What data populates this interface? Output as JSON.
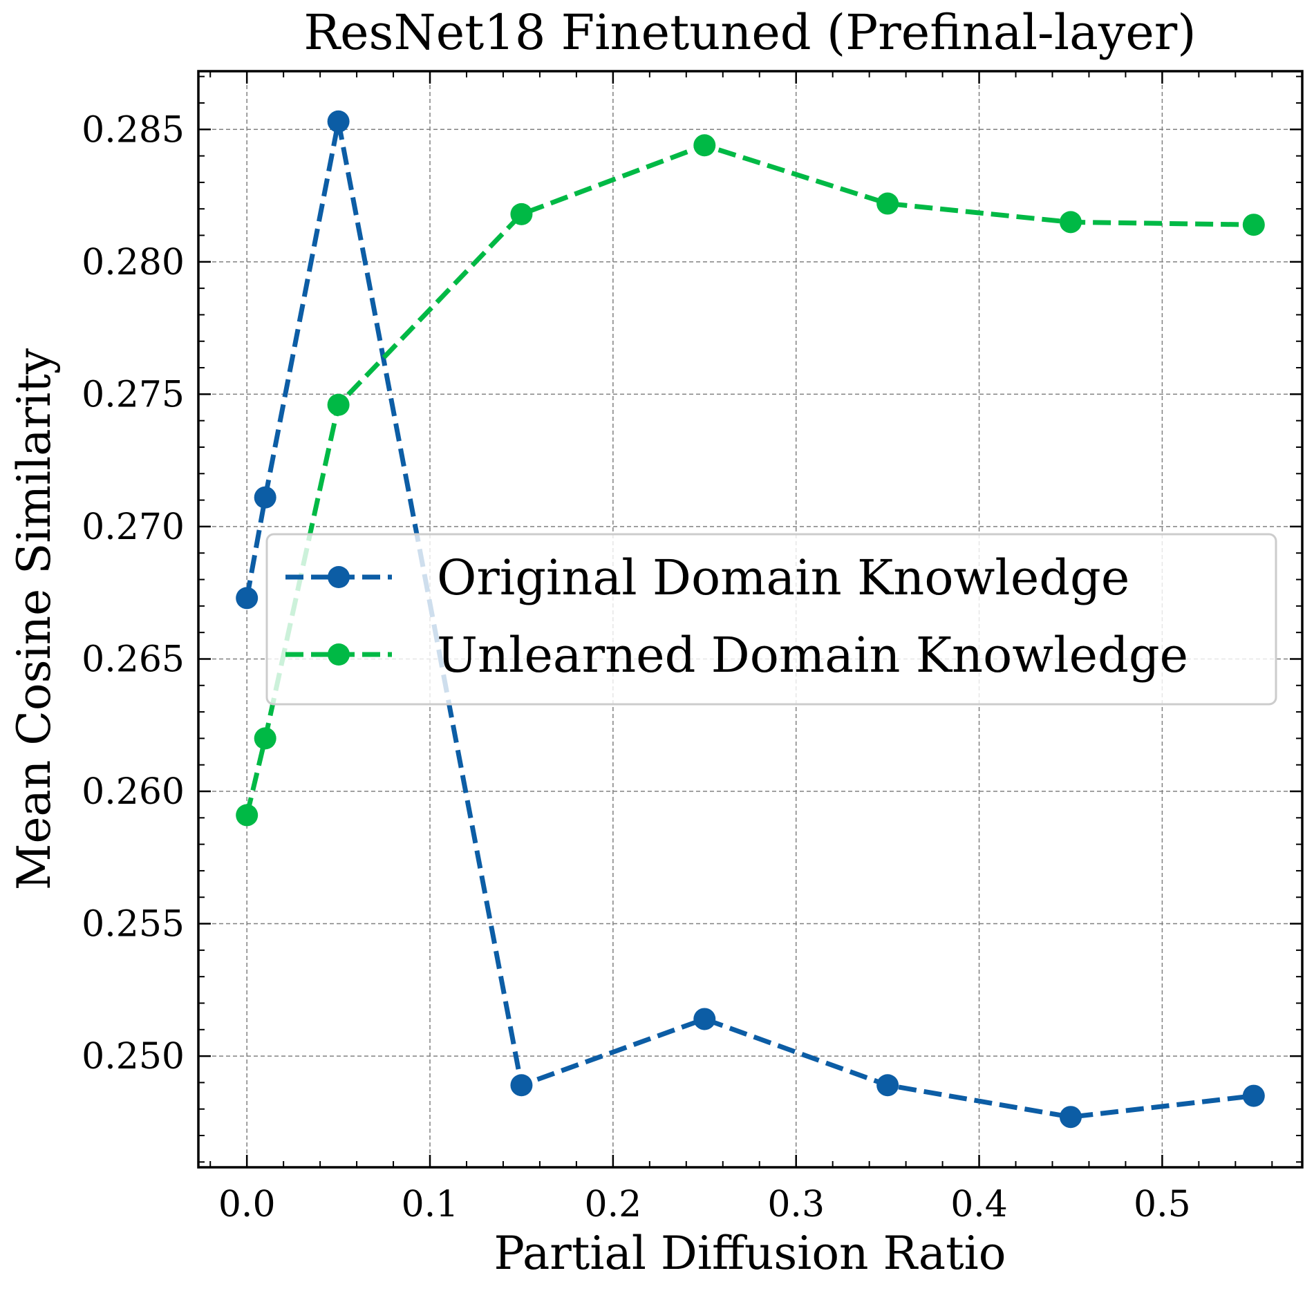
{
  "chart_data": {
    "type": "line",
    "title": "ResNet18 Finetuned (Prefinal-layer)",
    "xlabel": "Partial Diffusion Ratio",
    "ylabel": "Mean Cosine Similarity",
    "xlim": [
      -0.0265,
      0.5765
    ],
    "ylim": [
      0.2458,
      0.2872
    ],
    "x_ticks": [
      0.0,
      0.1,
      0.2,
      0.3,
      0.4,
      0.5
    ],
    "x_tick_labels": [
      "0.0",
      "0.1",
      "0.2",
      "0.3",
      "0.4",
      "0.5"
    ],
    "y_ticks": [
      0.25,
      0.255,
      0.26,
      0.265,
      0.27,
      0.275,
      0.28,
      0.285
    ],
    "y_tick_labels": [
      "0.250",
      "0.255",
      "0.260",
      "0.265",
      "0.270",
      "0.275",
      "0.280",
      "0.285"
    ],
    "grid": true,
    "legend_position": "center-right",
    "series": [
      {
        "name": "Original Domain Knowledge",
        "color": "#0C5DA5",
        "x": [
          0.0,
          0.01,
          0.05,
          0.15,
          0.25,
          0.35,
          0.45,
          0.55
        ],
        "y": [
          0.2673,
          0.2711,
          0.2853,
          0.2489,
          0.2514,
          0.2489,
          0.2477,
          0.2485
        ]
      },
      {
        "name": "Unlearned Domain Knowledge",
        "color": "#00B945",
        "x": [
          0.0,
          0.01,
          0.05,
          0.15,
          0.25,
          0.35,
          0.45,
          0.55
        ],
        "y": [
          0.2591,
          0.262,
          0.2746,
          0.2818,
          0.2844,
          0.2822,
          0.2815,
          0.2814
        ]
      }
    ]
  }
}
